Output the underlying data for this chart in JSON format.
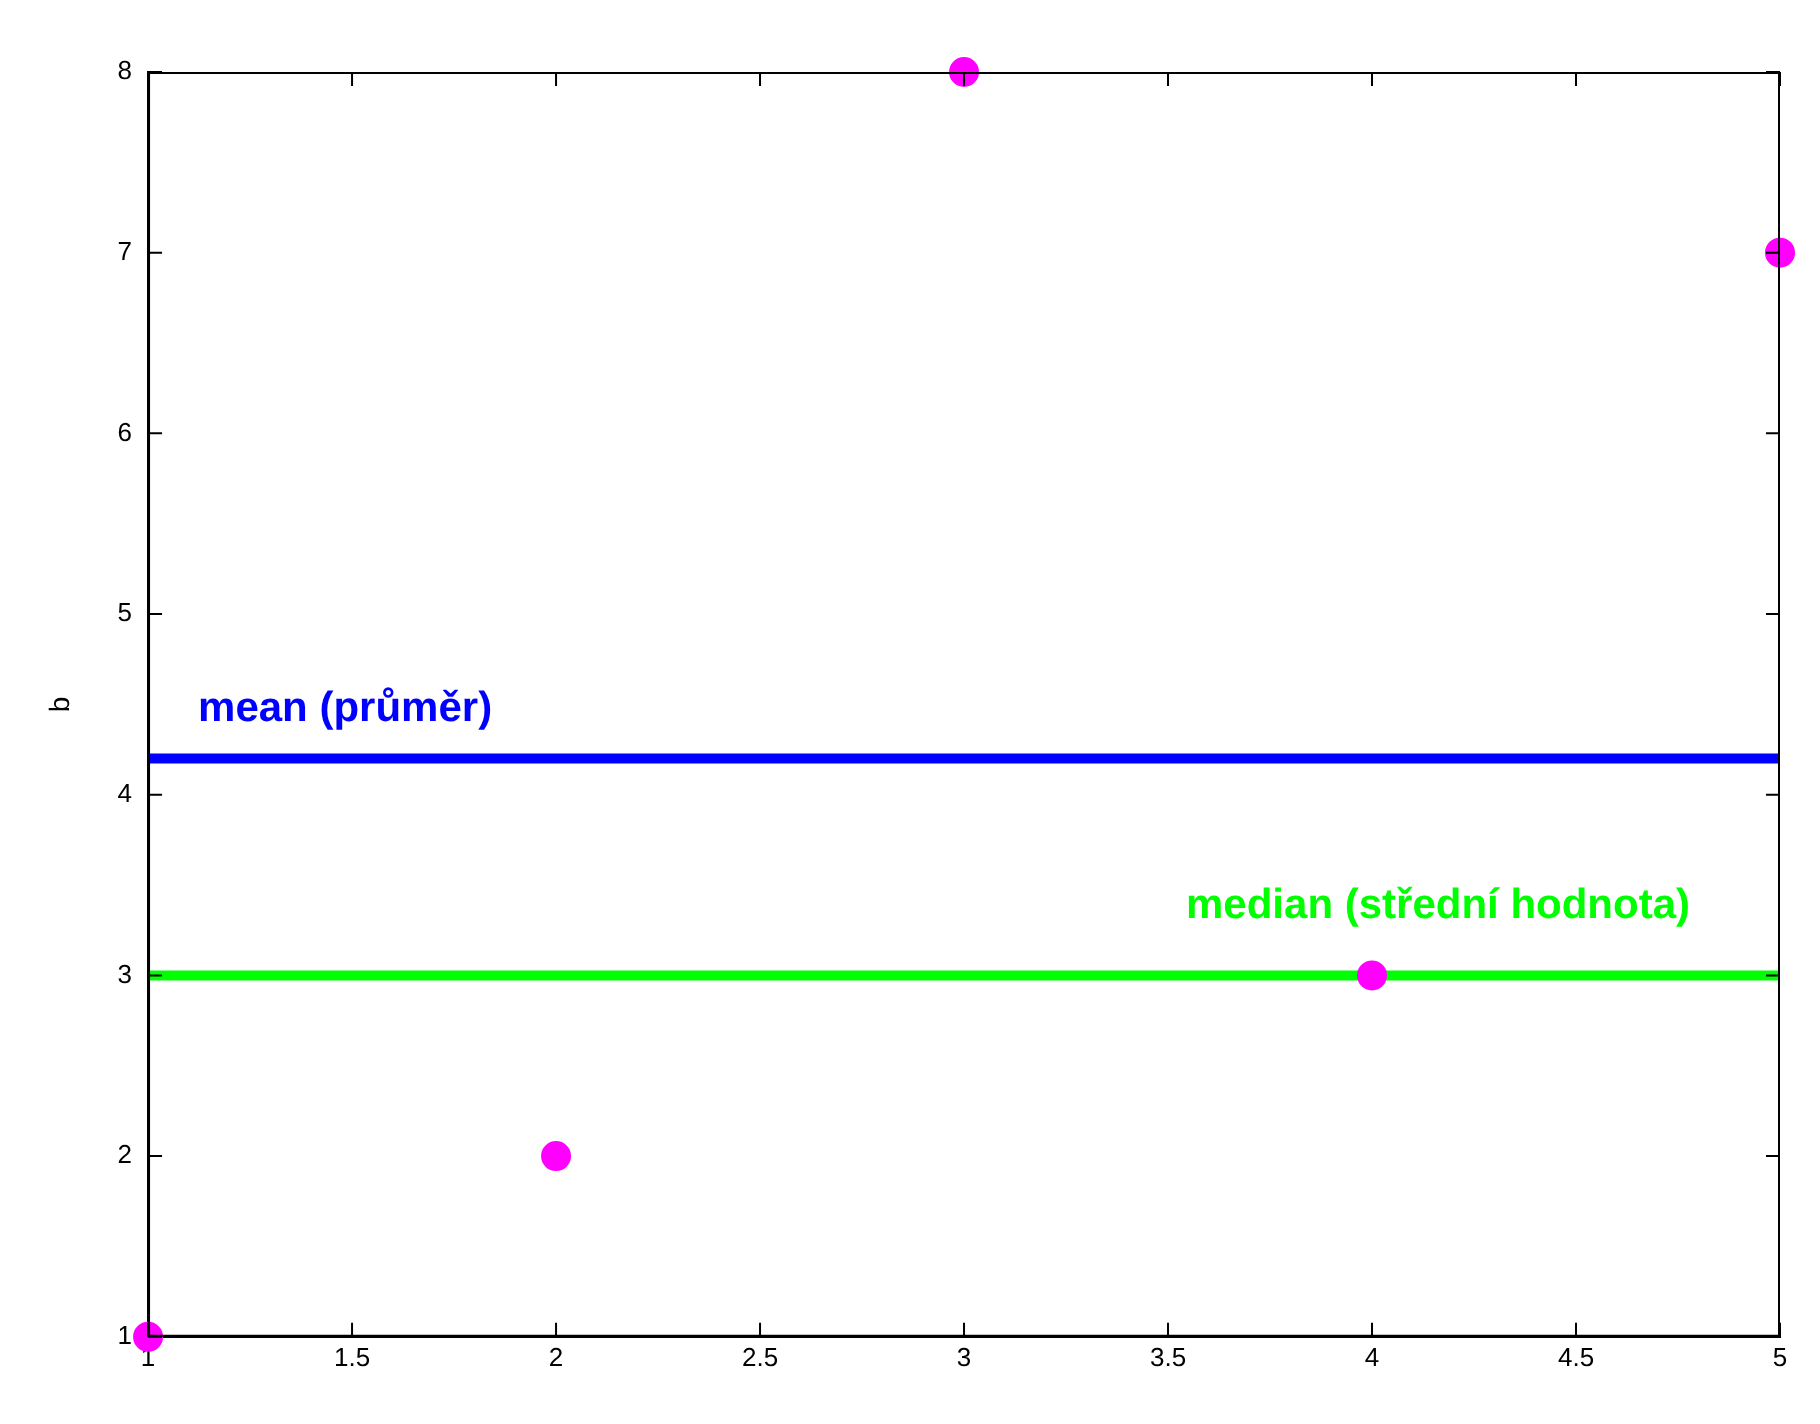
{
  "chart_data": {
    "type": "scatter",
    "ylabel": "b",
    "x": [
      1,
      2,
      3,
      4,
      5
    ],
    "series": [
      {
        "color": "#ff00ff",
        "values": [
          1,
          2,
          8,
          3,
          7
        ]
      }
    ],
    "marker": "circle",
    "xlim": [
      1,
      5
    ],
    "xticks": [
      1,
      1.5,
      2,
      2.5,
      3,
      3.5,
      4,
      4.5,
      5
    ],
    "ylim": [
      1,
      8
    ],
    "yticks": [
      1,
      2,
      3,
      4,
      5,
      6,
      7,
      8
    ],
    "grid": false,
    "legend": false,
    "ref_lines": [
      {
        "axis": "y",
        "value": 4.2,
        "label": "mean (průměr)",
        "color": "#0000ff"
      },
      {
        "axis": "y",
        "value": 3,
        "label": "median (střední hodnota)",
        "color": "#00ff00"
      }
    ]
  }
}
